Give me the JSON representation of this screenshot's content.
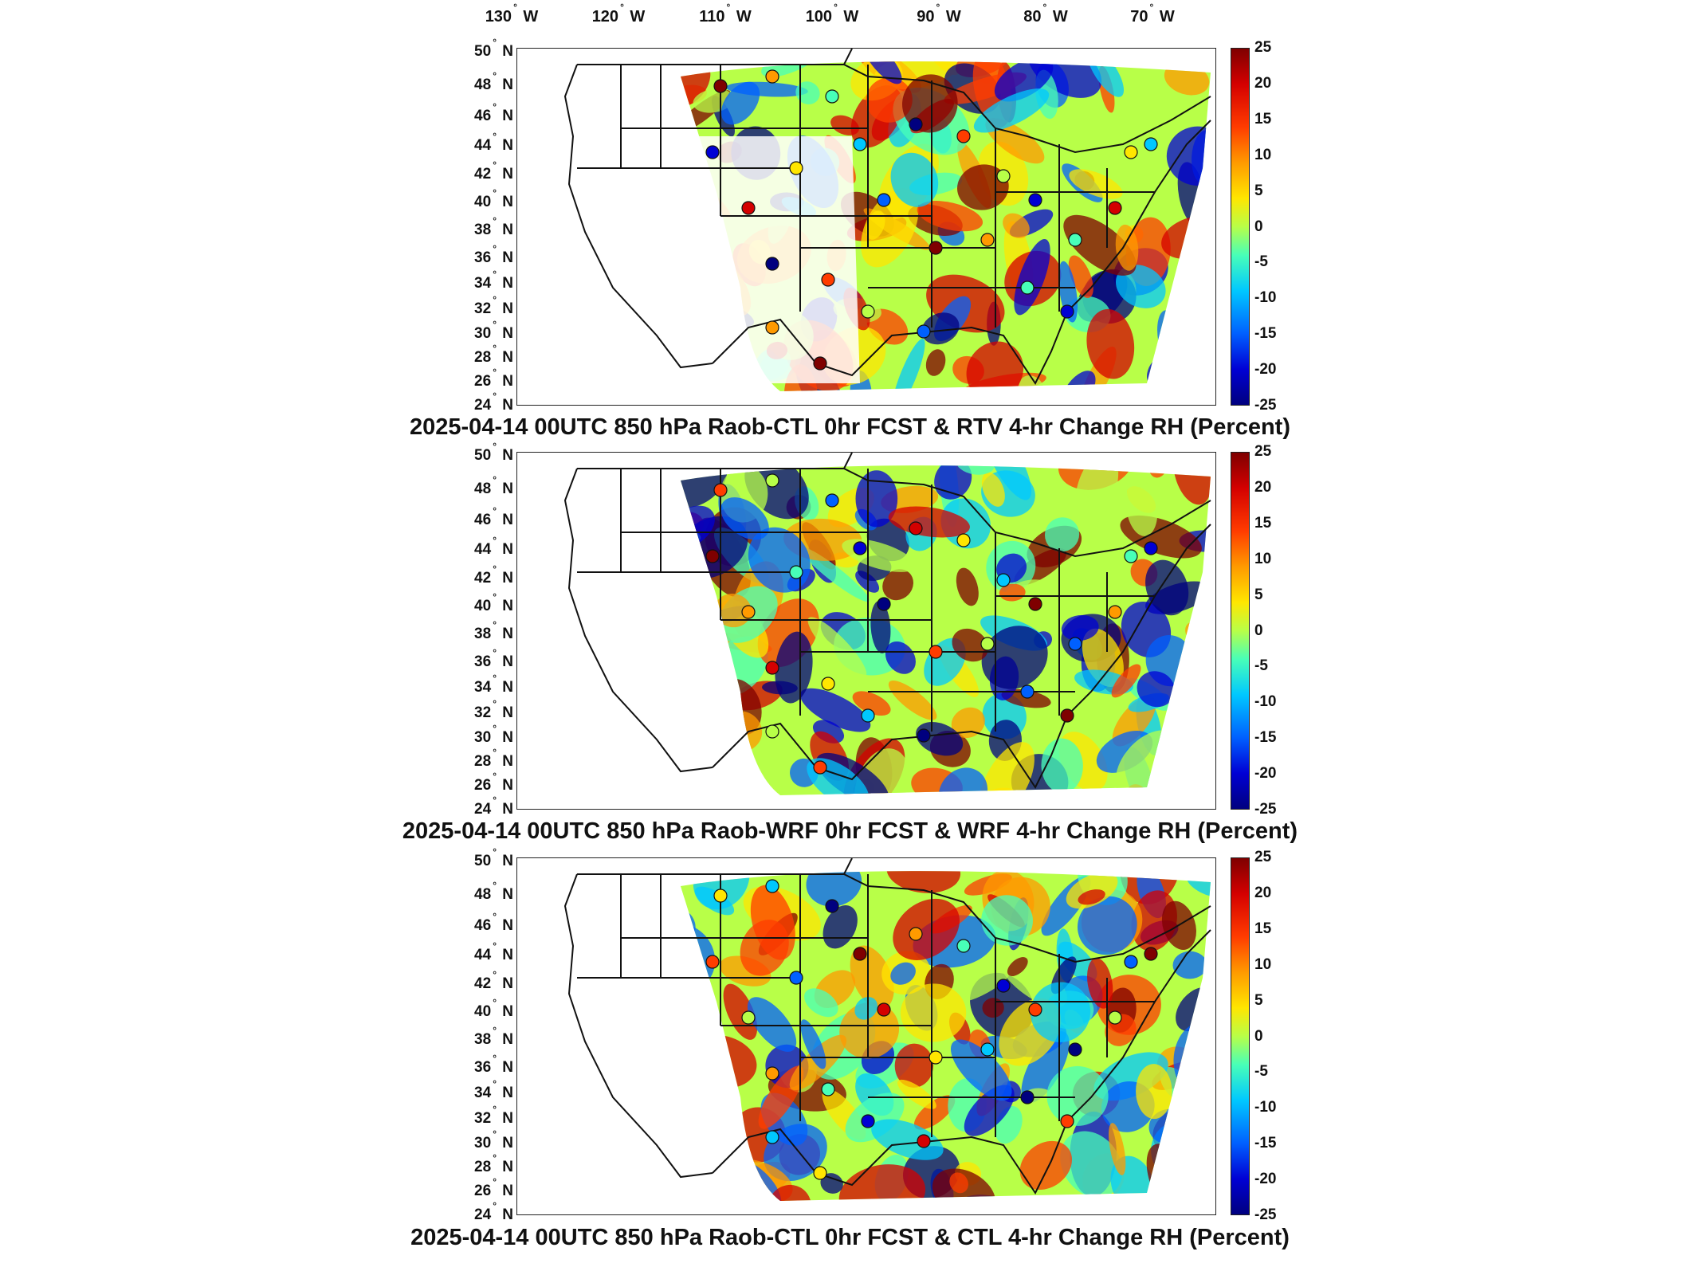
{
  "lon_labels": [
    "130° W",
    "120° W",
    "110° W",
    "100° W",
    "90° W",
    "80° W",
    "70° W"
  ],
  "lat_labels": [
    "50° N",
    "48° N",
    "46° N",
    "44° N",
    "42° N",
    "40° N",
    "38° N",
    "36° N",
    "34° N",
    "32° N",
    "30° N",
    "28° N",
    "26° N",
    "24° N"
  ],
  "colorbar_ticks": [
    "25",
    "20",
    "15",
    "10",
    "5",
    "0",
    "-5",
    "-10",
    "-15",
    "-20",
    "-25"
  ],
  "colorbar_range": [
    -25,
    25
  ],
  "colormap": [
    "#7f0000",
    "#d40000",
    "#ff3c00",
    "#ff9a00",
    "#ffe600",
    "#b8ff48",
    "#48ffb8",
    "#00c8ff",
    "#0060ff",
    "#0000d4",
    "#00007f"
  ],
  "panels": [
    {
      "title": "2025-04-14 00UTC 850 hPa Raob-CTL 0hr FCST & RTV 4-hr Change RH (Percent)"
    },
    {
      "title": "2025-04-14 00UTC 850 hPa Raob-WRF 0hr FCST & WRF 4-hr Change RH (Percent)"
    },
    {
      "title": "2025-04-14 00UTC 850 hPa Raob-CTL 0hr FCST & CTL 4-hr Change RH (Percent)"
    }
  ]
}
